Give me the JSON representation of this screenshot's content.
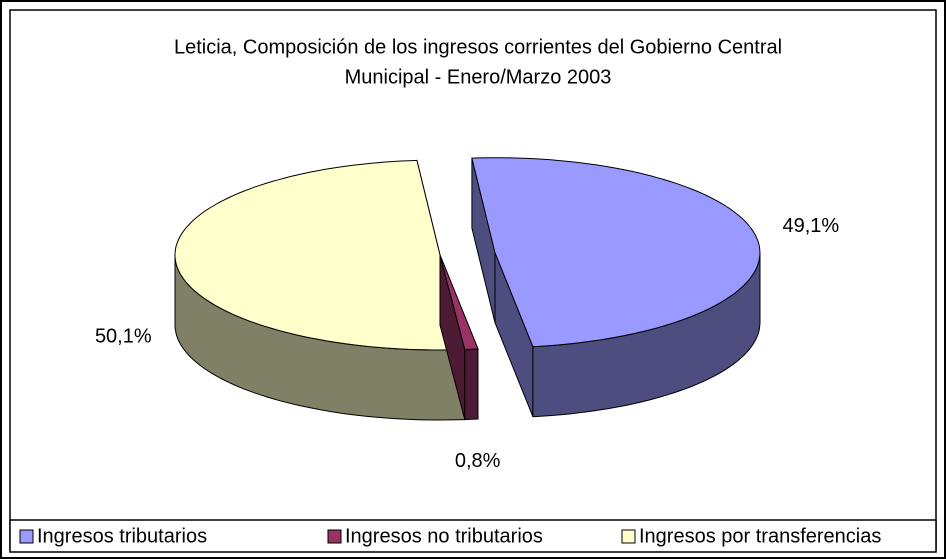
{
  "chart_data": {
    "type": "pie",
    "title": [
      "Leticia, Composición de los ingresos corrientes del Gobierno Central",
      "Municipal - Enero/Marzo  2003"
    ],
    "categories": [
      "Ingresos tributarios",
      "Ingresos no tributarios",
      "Ingresos por transferencias"
    ],
    "values": [
      49.1,
      0.8,
      50.1
    ],
    "value_labels": [
      "49,1%",
      "0,8%",
      "50,1%"
    ],
    "colors": [
      "#9999ff",
      "#993366",
      "#ffffcc"
    ],
    "exploded": [
      true,
      false,
      false
    ],
    "legend": "bottom"
  }
}
